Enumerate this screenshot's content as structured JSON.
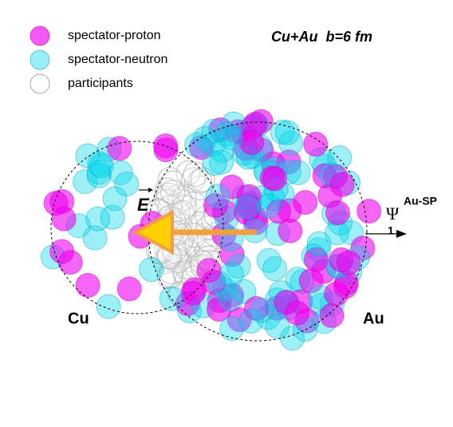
{
  "legend": {
    "items": [
      "spectator-proton",
      "spectator-neutron",
      "participants"
    ]
  },
  "title": "Cu+Au  b=6 fm",
  "labels": {
    "field": "E",
    "cu": "Cu",
    "au": "Au",
    "psi": "Ψ",
    "psi_sub": "1",
    "psi_sup": "Au-SP"
  }
}
